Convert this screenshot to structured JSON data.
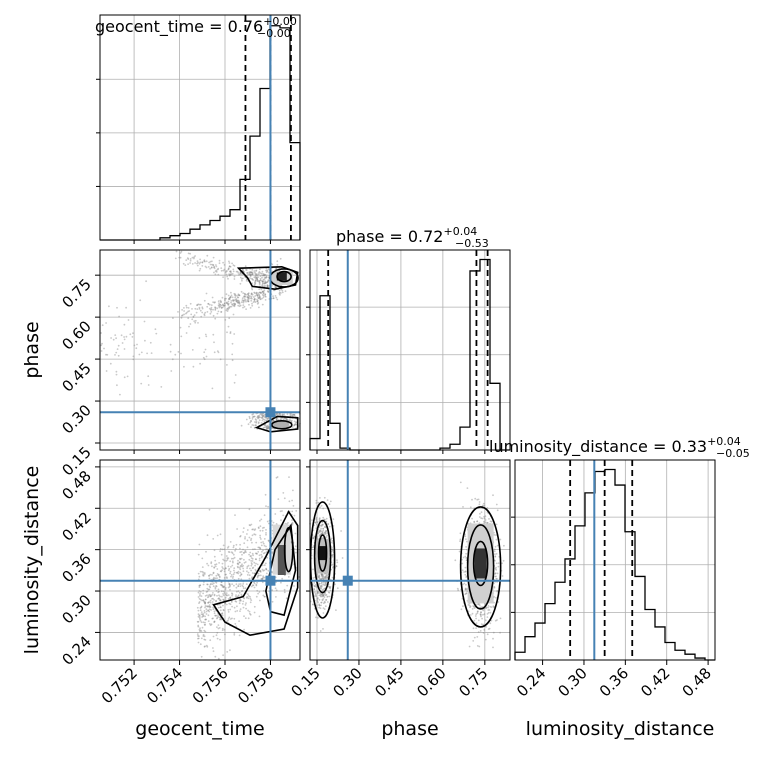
{
  "chart_data": {
    "type": "corner",
    "parameters": [
      "geocent_time",
      "phase",
      "luminosity_distance"
    ],
    "truths": {
      "geocent_time": 0.758,
      "phase": 0.26,
      "luminosity_distance": 0.315
    },
    "truth_color": "#4682b4",
    "colors": {
      "histogram": "#000000",
      "grid": "#b0b0b0",
      "samples": "#888888",
      "truth": "#4682b4"
    },
    "grid": true,
    "titles": [
      {
        "name": "geocent_time",
        "median": "0.76",
        "plus": "+0.00",
        "minus": "−0.00"
      },
      {
        "name": "phase",
        "median": "0.72",
        "plus": "+0.04",
        "minus": "−0.53"
      },
      {
        "name": "luminosity_distance",
        "median": "0.33",
        "plus": "+0.04",
        "minus": "−0.05"
      }
    ],
    "axes": {
      "geocent_time": {
        "range": [
          0.7505,
          0.7593
        ],
        "ticks": [
          0.752,
          0.754,
          0.756,
          0.758
        ],
        "tick_labels": [
          "0.752",
          "0.754",
          "0.756",
          "0.758"
        ],
        "xlabel": "geocent_time"
      },
      "phase": {
        "range": [
          0.125,
          0.84
        ],
        "ticks": [
          0.15,
          0.3,
          0.45,
          0.6,
          0.75
        ],
        "tick_labels": [
          "0.15",
          "0.30",
          "0.45",
          "0.60",
          "0.75"
        ],
        "xlabel": "phase",
        "ylabel": "phase"
      },
      "luminosity_distance": {
        "range": [
          0.2,
          0.49
        ],
        "ticks": [
          0.24,
          0.3,
          0.36,
          0.42,
          0.48
        ],
        "tick_labels": [
          "0.24",
          "0.30",
          "0.36",
          "0.42",
          "0.48"
        ],
        "xlabel": "luminosity_distance",
        "ylabel": "luminosity_distance"
      }
    },
    "histograms": {
      "geocent_time": {
        "edges": [
          0.7505,
          0.75094,
          0.75138,
          0.75182,
          0.75226,
          0.7527,
          0.75314,
          0.75358,
          0.75402,
          0.75446,
          0.7549,
          0.75534,
          0.75578,
          0.75622,
          0.75666,
          0.7571,
          0.75754,
          0.75798,
          0.75842,
          0.75886,
          0.7593
        ],
        "counts": [
          0,
          0,
          0,
          0,
          0,
          0,
          1,
          2,
          3,
          5,
          7,
          9,
          11,
          14,
          28,
          48,
          70,
          99,
          98,
          45
        ],
        "quantile_lines": [
          0.7569,
          0.758,
          0.7589
        ]
      },
      "phase": {
        "edges": [
          0.125,
          0.16075,
          0.1965,
          0.23225,
          0.268,
          0.30375,
          0.3395,
          0.37525,
          0.411,
          0.44675,
          0.4825,
          0.51825,
          0.554,
          0.58975,
          0.6255,
          0.66125,
          0.697,
          0.73275,
          0.7685,
          0.80425,
          0.84
        ],
        "counts": [
          6,
          81,
          14,
          1,
          0,
          0,
          0,
          0,
          0,
          0,
          0,
          0,
          0,
          1,
          3,
          12,
          94,
          100,
          35,
          0
        ],
        "quantile_lines": [
          0.19,
          0.72,
          0.76
        ]
      },
      "luminosity_distance": {
        "edges": [
          0.2,
          0.2145,
          0.229,
          0.2435,
          0.258,
          0.2725,
          0.287,
          0.3015,
          0.316,
          0.3305,
          0.345,
          0.3595,
          0.374,
          0.3885,
          0.403,
          0.4175,
          0.432,
          0.4465,
          0.461,
          0.4755,
          0.49
        ],
        "counts": [
          4,
          12,
          19,
          29,
          40,
          52,
          69,
          86,
          97,
          98,
          90,
          66,
          43,
          26,
          17,
          9,
          5,
          3,
          1,
          0
        ],
        "quantile_lines": [
          0.28,
          0.33,
          0.37
        ]
      }
    },
    "contour_panels": [
      {
        "x": "geocent_time",
        "y": "phase",
        "description": "bimodal: mode near phase 0.73 and mode near phase 0.22 at geocent_time 0.7585"
      },
      {
        "x": "geocent_time",
        "y": "luminosity_distance",
        "description": "correlated cloud, increasing toward geocent_time 0.7585"
      },
      {
        "x": "phase",
        "y": "luminosity_distance",
        "description": "two modes at phase 0.17 and phase 0.73"
      }
    ]
  }
}
